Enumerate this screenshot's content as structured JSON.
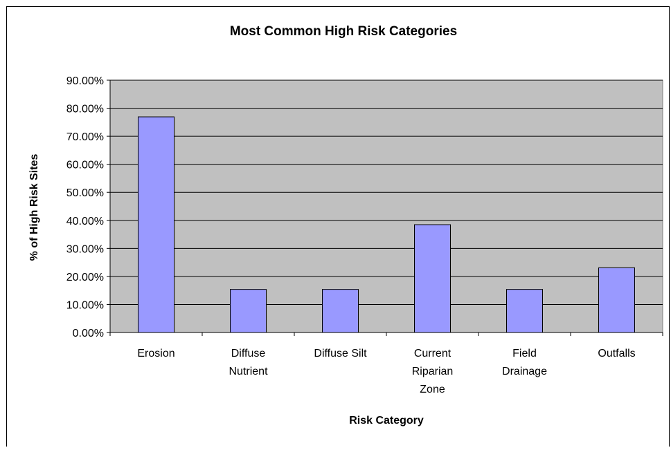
{
  "chart_data": {
    "type": "bar",
    "title": "Most Common High Risk Categories",
    "xlabel": "Risk Category",
    "ylabel": "% of High Risk Sites",
    "categories": [
      [
        "Erosion"
      ],
      [
        "Diffuse",
        "Nutrient"
      ],
      [
        "Diffuse Silt"
      ],
      [
        "Current",
        "Riparian",
        "Zone"
      ],
      [
        "Field",
        "Drainage"
      ],
      [
        "Outfalls"
      ]
    ],
    "values": [
      76.92,
      15.38,
      15.38,
      38.46,
      15.38,
      23.08
    ],
    "y_ticks": [
      "0.00%",
      "10.00%",
      "20.00%",
      "30.00%",
      "40.00%",
      "50.00%",
      "60.00%",
      "70.00%",
      "80.00%",
      "90.00%"
    ],
    "ylim": [
      0,
      90
    ],
    "grid": true,
    "legend": "none",
    "colors": {
      "bar_fill": "#9999ff",
      "plot_background": "#c0c0c0",
      "gridline": "#000000",
      "axis": "#000000",
      "border": "#000000"
    }
  }
}
